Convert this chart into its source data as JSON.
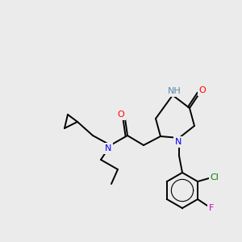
{
  "bg_color": "#ebebeb",
  "atom_colors": {
    "N": "#0000ff",
    "O": "#ff0000",
    "Cl": "#008000",
    "F": "#cc00cc",
    "NH": "#5588aa",
    "C": "#000000"
  },
  "lw": 1.4,
  "fs": 8.0
}
